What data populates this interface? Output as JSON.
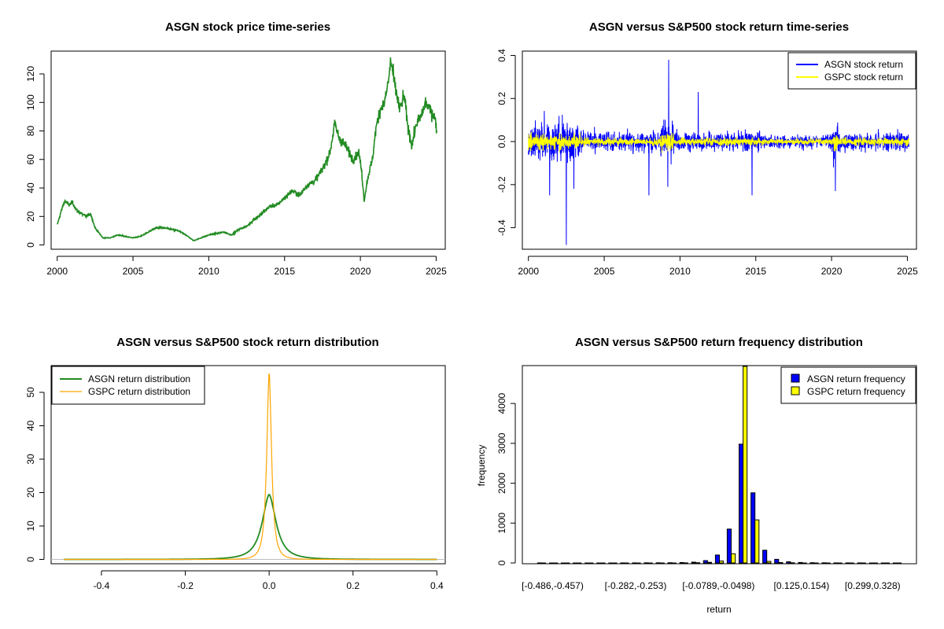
{
  "colors": {
    "price": "#228B22",
    "asgn_return": "#0000FF",
    "gspc_return": "#FFFF00",
    "asgn_density": "#228B22",
    "gspc_density": "#FFA500",
    "asgn_bar": "#0000FF",
    "gspc_bar": "#FFFF00"
  },
  "chart_data": [
    {
      "id": "price",
      "type": "line",
      "title": "ASGN stock price time-series",
      "xlabel": "",
      "ylabel": "",
      "xlim": [
        1999.6,
        2025.6
      ],
      "ylim": [
        -3,
        136
      ],
      "xticks": [
        2000,
        2005,
        2010,
        2015,
        2020,
        2025
      ],
      "yticks": [
        0,
        20,
        40,
        60,
        80,
        100,
        120
      ],
      "series": [
        {
          "name": "ASGN price",
          "x": [
            2000.0,
            2000.3,
            2000.5,
            2000.8,
            2001.0,
            2001.3,
            2001.6,
            2001.9,
            2002.2,
            2002.5,
            2002.8,
            2003.0,
            2003.5,
            2004.0,
            2004.5,
            2005.0,
            2005.5,
            2006.0,
            2006.5,
            2007.0,
            2007.5,
            2008.0,
            2008.5,
            2009.0,
            2009.5,
            2010.0,
            2010.5,
            2011.0,
            2011.5,
            2012.0,
            2012.5,
            2013.0,
            2013.5,
            2014.0,
            2014.5,
            2015.0,
            2015.5,
            2016.0,
            2016.5,
            2017.0,
            2017.5,
            2018.0,
            2018.3,
            2018.6,
            2019.0,
            2019.5,
            2019.9,
            2020.1,
            2020.25,
            2020.5,
            2020.8,
            2021.0,
            2021.3,
            2021.6,
            2021.9,
            2022.0,
            2022.3,
            2022.6,
            2022.9,
            2023.1,
            2023.4,
            2023.7,
            2024.0,
            2024.3,
            2024.6,
            2024.9,
            2025.05
          ],
          "values": [
            14,
            25,
            31,
            28,
            30,
            24,
            22,
            20,
            22,
            12,
            8,
            5,
            5,
            7,
            6,
            5,
            6,
            9,
            12,
            12,
            11,
            10,
            7,
            3,
            5,
            7,
            8,
            9,
            7,
            11,
            13,
            18,
            22,
            27,
            28,
            33,
            38,
            35,
            42,
            45,
            53,
            65,
            85,
            75,
            70,
            60,
            65,
            50,
            31,
            48,
            60,
            80,
            95,
            100,
            118,
            130,
            110,
            95,
            105,
            85,
            70,
            85,
            90,
            100,
            95,
            90,
            80
          ]
        }
      ]
    },
    {
      "id": "returns",
      "type": "line",
      "title": "ASGN versus S&P500 stock return time-series",
      "xlabel": "",
      "ylabel": "",
      "xlim": [
        1999.6,
        2025.6
      ],
      "ylim": [
        -0.5,
        0.42
      ],
      "xticks": [
        2000,
        2005,
        2010,
        2015,
        2020,
        2025
      ],
      "yticks": [
        -0.4,
        -0.2,
        0.0,
        0.2,
        0.4
      ],
      "legend": {
        "position": "top-right",
        "entries": [
          "ASGN stock return",
          "GSPC stock return"
        ]
      },
      "series": [
        {
          "name": "ASGN stock return",
          "x_start": 2000.0,
          "x_end": 2025.1,
          "volatility": 0.03
        },
        {
          "name": "GSPC stock return",
          "x_start": 2000.0,
          "x_end": 2025.1,
          "volatility": 0.012
        }
      ],
      "highlights": [
        {
          "x": 2002.5,
          "value": -0.48
        },
        {
          "x": 2009.25,
          "value": 0.38
        },
        {
          "x": 2011.2,
          "value": 0.23
        },
        {
          "x": 2009.2,
          "value": -0.21
        },
        {
          "x": 2007.95,
          "value": -0.25
        },
        {
          "x": 2014.75,
          "value": -0.25
        },
        {
          "x": 2020.25,
          "value": -0.23
        },
        {
          "x": 2001.4,
          "value": -0.25
        },
        {
          "x": 2003.0,
          "value": -0.22
        }
      ]
    },
    {
      "id": "density",
      "type": "line",
      "title": "ASGN versus S&P500 stock return distribution",
      "xlabel": "",
      "ylabel": "",
      "xlim": [
        -0.52,
        0.42
      ],
      "ylim": [
        -1.3,
        58
      ],
      "xticks": [
        -0.4,
        -0.2,
        0.0,
        0.2,
        0.4
      ],
      "yticks": [
        0,
        10,
        20,
        30,
        40,
        50
      ],
      "legend": {
        "position": "top-left",
        "entries": [
          "ASGN return distribution",
          "GSPC return distribution"
        ]
      },
      "series": [
        {
          "name": "ASGN return distribution",
          "x_range": [
            -0.49,
            0.4
          ],
          "peak": 19.5,
          "center": 0.0,
          "scale": 0.016
        },
        {
          "name": "GSPC return distribution",
          "x_range": [
            -0.49,
            0.4
          ],
          "peak": 56.5,
          "center": 0.0,
          "scale": 0.0055
        }
      ]
    },
    {
      "id": "frequency",
      "type": "bar",
      "title": "ASGN versus S&P500 return frequency distribution",
      "xlabel": "return",
      "ylabel": "frequency",
      "ylim": [
        0,
        4950
      ],
      "yticks": [
        0,
        1000,
        2000,
        3000,
        4000
      ],
      "category_labels": [
        "[-0.486,-0.457)",
        "[-0.282,-0.253)",
        "[-0.0789,-0.0498)",
        "[0.125,0.154)",
        "[0.299,0.328)"
      ],
      "legend": {
        "position": "top-right",
        "entries": [
          "ASGN return frequency",
          "GSPC return frequency"
        ]
      },
      "series": [
        {
          "name": "ASGN return frequency",
          "values": [
            1,
            0,
            0,
            0,
            0,
            0,
            0,
            1,
            2,
            3,
            4,
            6,
            10,
            20,
            60,
            200,
            850,
            2980,
            1760,
            320,
            90,
            30,
            12,
            6,
            3,
            2,
            1,
            1,
            0,
            0,
            0
          ]
        },
        {
          "name": "GSPC return frequency",
          "values": [
            0,
            0,
            0,
            0,
            0,
            0,
            0,
            0,
            0,
            0,
            0,
            0,
            2,
            5,
            15,
            50,
            230,
            4950,
            1080,
            40,
            10,
            3,
            0,
            0,
            0,
            0,
            0,
            0,
            0,
            0,
            0
          ]
        }
      ]
    }
  ]
}
